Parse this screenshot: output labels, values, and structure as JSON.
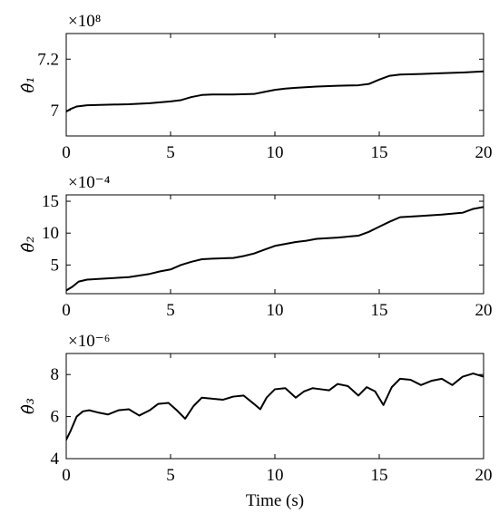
{
  "chart_data": [
    {
      "type": "line",
      "ylabel": "θ̂₁",
      "exponent": "×10⁸",
      "xlim": [
        0,
        20
      ],
      "ylim": [
        6.9,
        7.3
      ],
      "x_ticks": [
        "0",
        "5",
        "10",
        "15",
        "20"
      ],
      "y_ticks": [
        {
          "value": 7.0,
          "label": "7"
        },
        {
          "value": 7.2,
          "label": "7.2"
        }
      ],
      "series": [
        {
          "x": [
            0,
            0.2,
            0.5,
            1.0,
            2.0,
            3.0,
            4.0,
            5.0,
            5.5,
            6.0,
            6.5,
            7.0,
            8.0,
            9.0,
            9.5,
            10.0,
            10.5,
            11.0,
            12.0,
            13.0,
            14.0,
            14.5,
            15.0,
            15.5,
            16.0,
            17.0,
            18.0,
            19.0,
            20.0
          ],
          "y": [
            6.995,
            7.005,
            7.015,
            7.02,
            7.022,
            7.024,
            7.028,
            7.035,
            7.04,
            7.052,
            7.06,
            7.062,
            7.062,
            7.064,
            7.072,
            7.08,
            7.085,
            7.088,
            7.093,
            7.096,
            7.098,
            7.103,
            7.12,
            7.135,
            7.14,
            7.142,
            7.145,
            7.148,
            7.152
          ]
        }
      ]
    },
    {
      "type": "line",
      "ylabel": "θ̂₂",
      "exponent": "×10⁻⁴",
      "xlim": [
        0,
        20
      ],
      "ylim": [
        0.5,
        16
      ],
      "x_ticks": [
        "0",
        "5",
        "10",
        "15",
        "20"
      ],
      "y_ticks": [
        {
          "value": 5,
          "label": "5"
        },
        {
          "value": 10,
          "label": "10"
        },
        {
          "value": 15,
          "label": "15"
        }
      ],
      "series": [
        {
          "x": [
            0,
            0.3,
            0.6,
            1.0,
            2.0,
            3.0,
            4.0,
            4.5,
            5.0,
            5.5,
            6.0,
            6.5,
            7.0,
            8.0,
            8.5,
            9.0,
            9.5,
            10.0,
            10.5,
            11.0,
            11.5,
            12.0,
            13.0,
            14.0,
            14.5,
            15.0,
            15.5,
            16.0,
            17.0,
            18.0,
            19.0,
            19.5,
            20.0
          ],
          "y": [
            1.0,
            1.6,
            2.4,
            2.7,
            2.9,
            3.1,
            3.6,
            4.0,
            4.3,
            5.0,
            5.5,
            5.9,
            6.0,
            6.1,
            6.4,
            6.8,
            7.4,
            8.0,
            8.3,
            8.6,
            8.8,
            9.1,
            9.3,
            9.6,
            10.2,
            11.0,
            11.8,
            12.5,
            12.7,
            12.9,
            13.2,
            13.8,
            14.1
          ]
        }
      ]
    },
    {
      "type": "line",
      "ylabel": "θ̂₃",
      "exponent": "×10⁻⁶",
      "xlabel": "Time (s)",
      "xlim": [
        0,
        20
      ],
      "ylim": [
        4,
        9
      ],
      "x_ticks": [
        "0",
        "5",
        "10",
        "15",
        "20"
      ],
      "y_ticks": [
        {
          "value": 4,
          "label": "4"
        },
        {
          "value": 6,
          "label": "6"
        },
        {
          "value": 8,
          "label": "8"
        }
      ],
      "series": [
        {
          "x": [
            0,
            0.2,
            0.5,
            0.8,
            1.1,
            1.5,
            2.0,
            2.5,
            3.0,
            3.5,
            4.0,
            4.4,
            4.9,
            5.3,
            5.7,
            6.1,
            6.5,
            7.0,
            7.5,
            8.0,
            8.5,
            9.0,
            9.3,
            9.6,
            10.0,
            10.5,
            11.0,
            11.4,
            11.8,
            12.2,
            12.6,
            13.0,
            13.5,
            14.0,
            14.4,
            14.8,
            15.2,
            15.6,
            16.0,
            16.5,
            17.0,
            17.5,
            18.0,
            18.5,
            19.0,
            19.5,
            20.0
          ],
          "y": [
            4.9,
            5.3,
            6.0,
            6.25,
            6.3,
            6.2,
            6.1,
            6.3,
            6.35,
            6.05,
            6.3,
            6.6,
            6.65,
            6.3,
            5.9,
            6.5,
            6.9,
            6.85,
            6.8,
            6.95,
            7.0,
            6.6,
            6.35,
            6.9,
            7.3,
            7.35,
            6.9,
            7.2,
            7.35,
            7.3,
            7.25,
            7.55,
            7.45,
            7.0,
            7.4,
            7.2,
            6.55,
            7.4,
            7.8,
            7.75,
            7.5,
            7.7,
            7.8,
            7.5,
            7.9,
            8.05,
            7.9
          ]
        }
      ]
    }
  ]
}
